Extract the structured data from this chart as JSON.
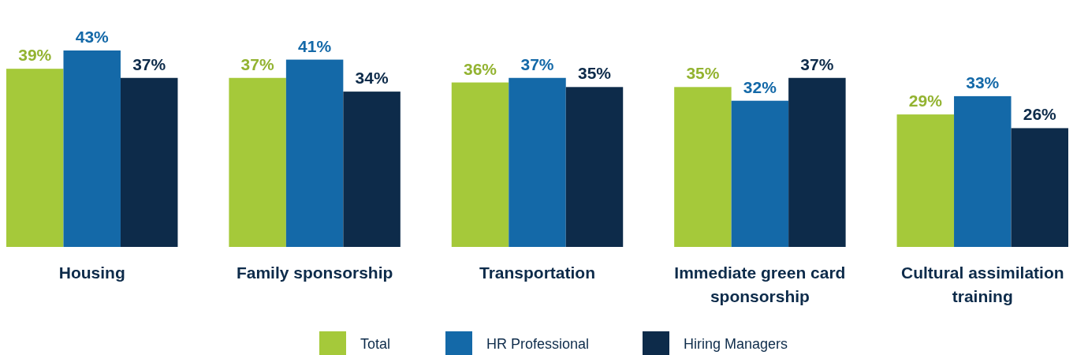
{
  "chart_data": {
    "type": "bar",
    "categories": [
      "Housing",
      "Family sponsorship",
      "Transportation",
      "Immediate green card sponsorship",
      "Cultural assimilation training"
    ],
    "series": [
      {
        "name": "Total",
        "color": "#a5c93a",
        "values": [
          39,
          37,
          36,
          35,
          29
        ],
        "value_labels": [
          "39%",
          "37%",
          "36%",
          "35%",
          "29%"
        ]
      },
      {
        "name": "HR Professional",
        "color": "#1469a8",
        "values": [
          43,
          41,
          37,
          32,
          33
        ],
        "value_labels": [
          "43%",
          "41%",
          "37%",
          "32%",
          "33%"
        ]
      },
      {
        "name": "Hiring Managers",
        "color": "#0d2b4a",
        "values": [
          37,
          34,
          35,
          37,
          26
        ],
        "value_labels": [
          "37%",
          "34%",
          "35%",
          "37%",
          "26%"
        ]
      }
    ],
    "legend": "bottom"
  }
}
